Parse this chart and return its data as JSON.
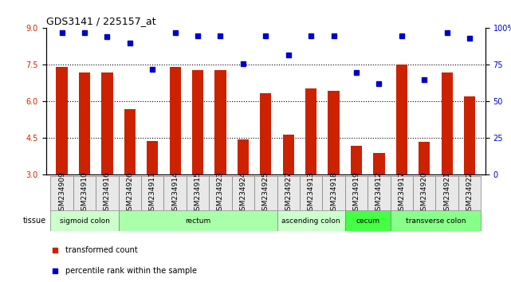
{
  "title": "GDS3141 / 225157_at",
  "samples": [
    "GSM234909",
    "GSM234910",
    "GSM234916",
    "GSM234926",
    "GSM234911",
    "GSM234914",
    "GSM234915",
    "GSM234923",
    "GSM234924",
    "GSM234925",
    "GSM234927",
    "GSM234913",
    "GSM234918",
    "GSM234919",
    "GSM234912",
    "GSM234917",
    "GSM234920",
    "GSM234921",
    "GSM234922"
  ],
  "bar_values": [
    7.4,
    7.2,
    7.2,
    5.7,
    4.4,
    7.4,
    7.3,
    7.3,
    4.45,
    6.35,
    4.65,
    6.55,
    6.45,
    4.2,
    3.9,
    7.5,
    4.35,
    7.2,
    6.2
  ],
  "dot_values": [
    97,
    97,
    94,
    90,
    72,
    97,
    95,
    95,
    76,
    95,
    82,
    95,
    95,
    70,
    62,
    95,
    65,
    97,
    93
  ],
  "ylim_left": [
    3,
    9
  ],
  "ylim_right": [
    0,
    100
  ],
  "yticks_left": [
    3,
    4.5,
    6,
    7.5,
    9
  ],
  "yticks_right": [
    0,
    25,
    50,
    75,
    100
  ],
  "grid_lines": [
    4.5,
    6.0,
    7.5
  ],
  "bar_color": "#CC2200",
  "dot_color": "#0000CC",
  "bar_bottom": 3,
  "tissue_groups": [
    {
      "label": "sigmoid colon",
      "start": 0,
      "end": 3,
      "color": "#ccffcc"
    },
    {
      "label": "rectum",
      "start": 3,
      "end": 10,
      "color": "#aaffaa"
    },
    {
      "label": "ascending colon",
      "start": 10,
      "end": 13,
      "color": "#ccffcc"
    },
    {
      "label": "cecum",
      "start": 13,
      "end": 15,
      "color": "#44ff44"
    },
    {
      "label": "transverse colon",
      "start": 15,
      "end": 19,
      "color": "#88ff88"
    }
  ],
  "legend_items": [
    {
      "label": "transformed count",
      "color": "#CC2200"
    },
    {
      "label": "percentile rank within the sample",
      "color": "#0000CC"
    }
  ],
  "tissue_label": "tissue",
  "xlabel": "",
  "tick_label_fontsize": 6.5,
  "right_axis_color": "#0000CC",
  "left_axis_color": "#CC2200"
}
